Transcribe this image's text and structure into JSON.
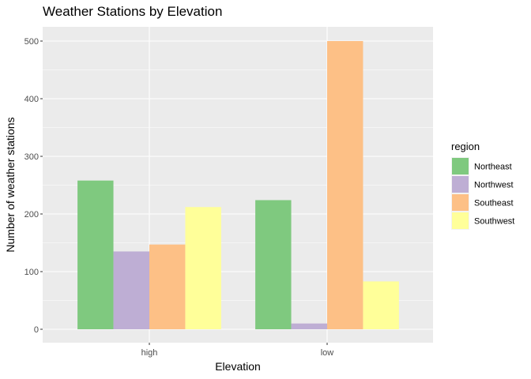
{
  "chart_data": {
    "type": "bar",
    "title": "Weather Stations by Elevation",
    "xlabel": "Elevation",
    "ylabel": "Number of weather stations",
    "categories": [
      "high",
      "low"
    ],
    "series": [
      {
        "name": "Northeast",
        "color": "#7fc97f",
        "values": [
          258,
          224
        ]
      },
      {
        "name": "Northwest",
        "color": "#beaed4",
        "values": [
          135,
          10
        ]
      },
      {
        "name": "Southeast",
        "color": "#fdc086",
        "values": [
          147,
          500
        ]
      },
      {
        "name": "Southwest",
        "color": "#ffff99",
        "values": [
          212,
          83
        ]
      }
    ],
    "ylim": [
      0,
      500
    ],
    "yticks": [
      0,
      100,
      200,
      300,
      400,
      500
    ],
    "grid": true,
    "legend": {
      "title": "region",
      "placement": "right"
    },
    "panel_color": "#ebebeb"
  }
}
